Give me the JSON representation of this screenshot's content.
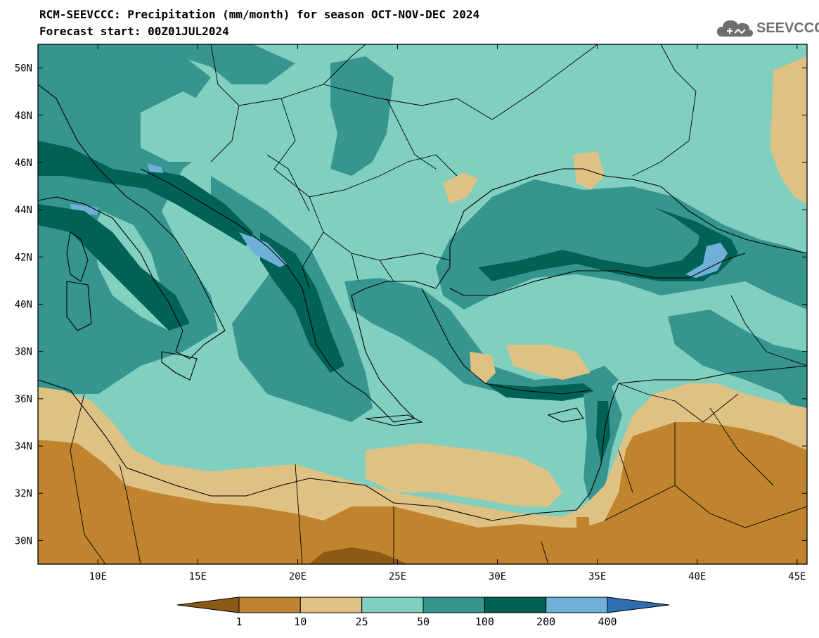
{
  "title_line1": "RCM-SEEVCCC: Precipitation (mm/month) for season OCT-NOV-DEC 2024",
  "title_line2": "Forecast start: 00Z01JUL2024",
  "logo": {
    "text": "SEEVCCC",
    "icon": "cloud-logo-icon"
  },
  "map": {
    "projection": "lat-lon",
    "lon_range": [
      7,
      45.5
    ],
    "lat_range": [
      29,
      51
    ],
    "x_ticks": [
      "10E",
      "15E",
      "20E",
      "25E",
      "30E",
      "35E",
      "40E",
      "45E"
    ],
    "x_tick_values": [
      10,
      15,
      20,
      25,
      30,
      35,
      40,
      45
    ],
    "y_ticks": [
      "50N",
      "48N",
      "46N",
      "44N",
      "42N",
      "40N",
      "38N",
      "36N",
      "34N",
      "32N",
      "30N"
    ],
    "y_tick_values": [
      50,
      48,
      46,
      44,
      42,
      40,
      38,
      36,
      34,
      32,
      30
    ],
    "variable": "Precipitation (mm/month)"
  },
  "colorbar": {
    "levels": [
      "1",
      "10",
      "25",
      "50",
      "100",
      "200",
      "400"
    ],
    "colors": [
      "#8c5a16",
      "#c0842f",
      "#dfc283",
      "#80cfbf",
      "#379590",
      "#006155",
      "#6fb0d8",
      "#2f6fb0"
    ],
    "extend": "both"
  }
}
